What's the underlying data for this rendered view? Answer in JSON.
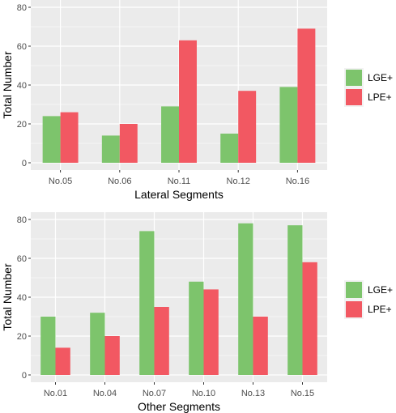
{
  "chart_data": [
    {
      "type": "bar",
      "categories": [
        "No.05",
        "No.06",
        "No.11",
        "No.12",
        "No.16"
      ],
      "series": [
        {
          "name": "LGE+",
          "values": [
            24,
            14,
            29,
            15,
            39
          ]
        },
        {
          "name": "LPE+",
          "values": [
            26,
            20,
            63,
            37,
            69
          ]
        }
      ],
      "xlabel": "Lateral Segments",
      "ylabel": "Total Number",
      "ylim": [
        0,
        80
      ],
      "yticks": [
        0,
        20,
        40,
        60,
        80
      ],
      "grid": true,
      "legend_position": "right"
    },
    {
      "type": "bar",
      "categories": [
        "No.01",
        "No.04",
        "No.07",
        "No.10",
        "No.13",
        "No.15"
      ],
      "series": [
        {
          "name": "LGE+",
          "values": [
            30,
            32,
            74,
            48,
            78,
            77
          ]
        },
        {
          "name": "LPE+",
          "values": [
            14,
            20,
            35,
            44,
            30,
            58
          ]
        }
      ],
      "xlabel": "Other Segments",
      "ylabel": "Total Number",
      "ylim": [
        0,
        80
      ],
      "yticks": [
        0,
        20,
        40,
        60,
        80
      ],
      "grid": true,
      "legend_position": "right"
    }
  ],
  "colors": {
    "LGE+": "#7dc46c",
    "LPE+": "#f25862",
    "panel_background": "#ebebeb",
    "grid": "#ffffff"
  }
}
